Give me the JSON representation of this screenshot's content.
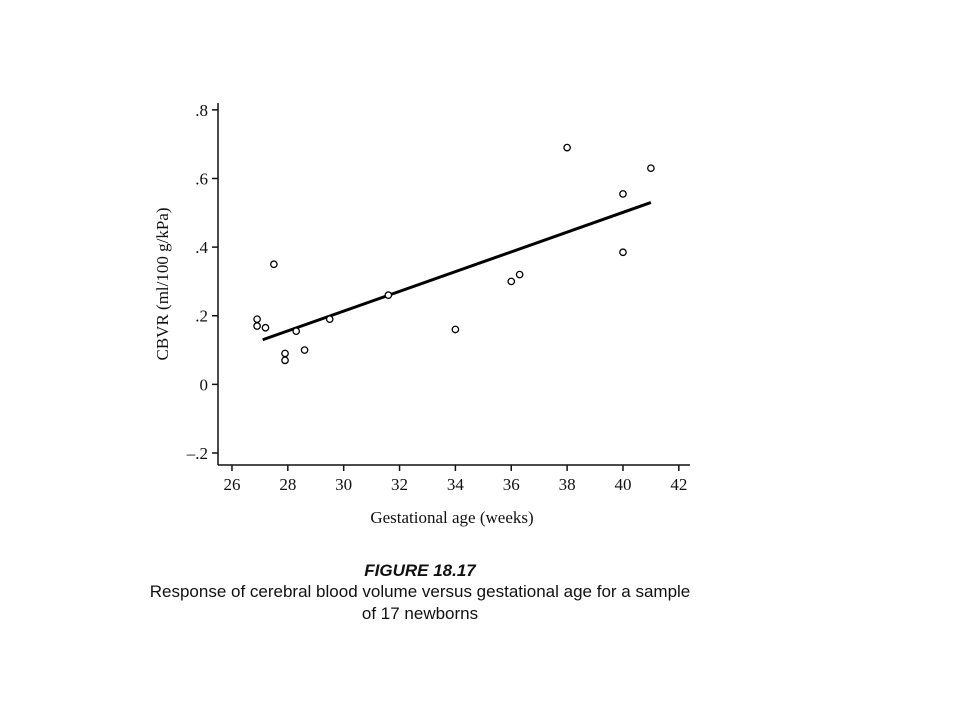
{
  "chart_data": {
    "type": "scatter",
    "xlabel": "Gestational age (weeks)",
    "ylabel": "CBVR (ml/100 g/kPa)",
    "figure_label": "FIGURE 18.17",
    "caption_lines": [
      "Response of cerebral blood volume versus gestational age for a sample",
      "of 17 newborns"
    ],
    "x": [
      26.9,
      26.9,
      27.2,
      27.5,
      27.9,
      27.9,
      28.3,
      28.6,
      29.5,
      31.6,
      34.0,
      36.0,
      36.3,
      38.0,
      40.0,
      40.0,
      41.0
    ],
    "values": [
      0.19,
      0.17,
      0.165,
      0.35,
      0.09,
      0.07,
      0.155,
      0.1,
      0.19,
      0.26,
      0.16,
      0.3,
      0.32,
      0.69,
      0.555,
      0.385,
      0.63
    ],
    "color": "#000000",
    "fit": {
      "x": [
        27.1,
        41.0
      ],
      "values": [
        0.13,
        0.53
      ]
    },
    "xlim": [
      25.5,
      42.4
    ],
    "ylim": [
      -0.235,
      0.82
    ],
    "xticks": [
      26,
      28,
      30,
      32,
      34,
      36,
      38,
      40,
      42
    ],
    "yticks": [
      {
        "value": -0.2,
        "label": "–.2"
      },
      0,
      {
        "value": 0.2,
        "label": ".2"
      },
      {
        "value": 0.4,
        "label": ".4"
      },
      {
        "value": 0.6,
        "label": ".6"
      },
      {
        "value": 0.8,
        "label": ".8"
      }
    ],
    "grid": false
  }
}
